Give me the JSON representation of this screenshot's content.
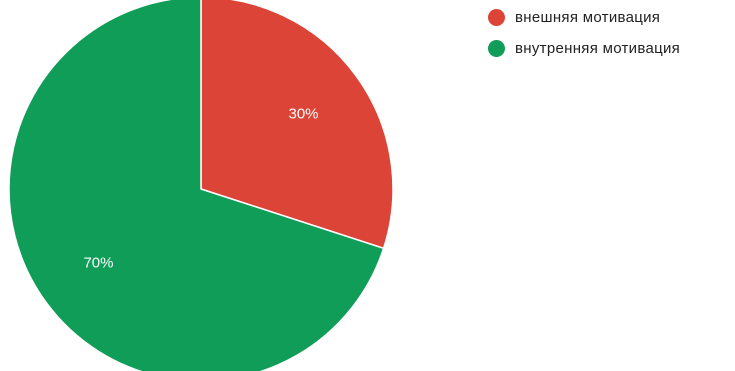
{
  "chart_data": {
    "type": "pie",
    "title": "",
    "legend_position": "top-right",
    "categories": [
      "внешняя мотивация",
      "внутренняя мотивация"
    ],
    "values": [
      30,
      70
    ],
    "labels": [
      "30%",
      "70%"
    ],
    "colors": [
      "#db4437",
      "#0f9d58"
    ],
    "start_angle_deg": 0,
    "direction": "clockwise",
    "slice_border_color": "#ffffff"
  },
  "legend": {
    "items": [
      {
        "label": "внешняя мотивация",
        "color": "#db4437"
      },
      {
        "label": "внутренняя мотивация",
        "color": "#0f9d58"
      }
    ]
  }
}
